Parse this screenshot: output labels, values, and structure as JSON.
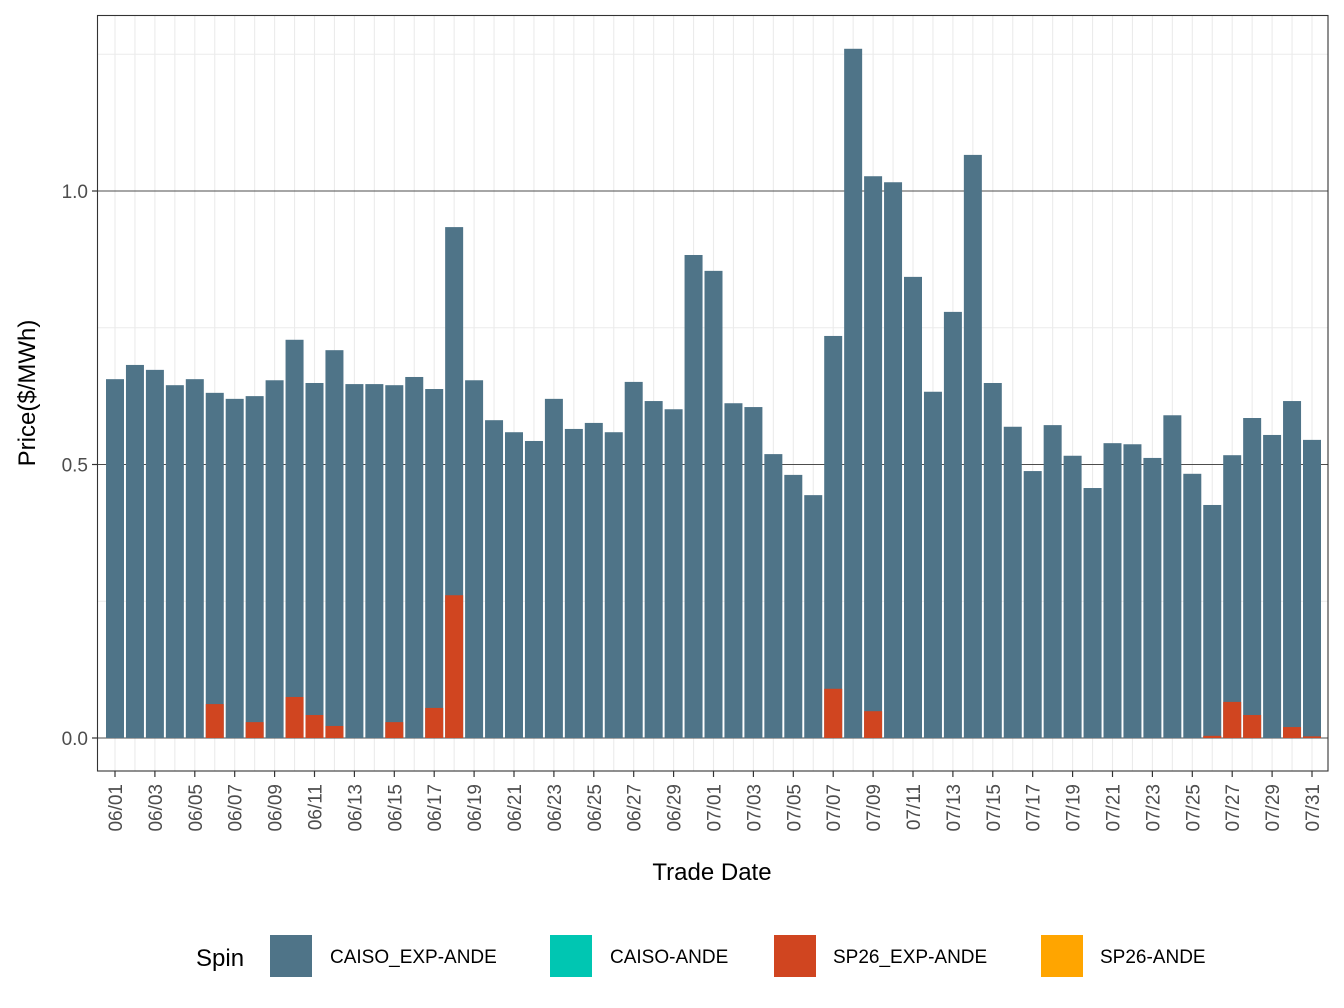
{
  "chart_data": {
    "type": "bar",
    "stacking": "overlay",
    "title": "",
    "xlabel": "Trade Date",
    "ylabel": "Price($/MWh)",
    "ylim": [
      -0.06,
      1.3
    ],
    "y_ticks": [
      0.0,
      0.5,
      1.0
    ],
    "y_tick_labels": [
      "0.0",
      "0.5",
      "1.0"
    ],
    "y_minor_ticks": [
      0.25,
      0.75,
      1.25
    ],
    "grid": true,
    "categories": [
      "06/01",
      "06/02",
      "06/03",
      "06/04",
      "06/05",
      "06/06",
      "06/07",
      "06/08",
      "06/09",
      "06/10",
      "06/11",
      "06/12",
      "06/13",
      "06/14",
      "06/15",
      "06/16",
      "06/17",
      "06/18",
      "06/19",
      "06/20",
      "06/21",
      "06/22",
      "06/23",
      "06/24",
      "06/25",
      "06/26",
      "06/27",
      "06/28",
      "06/29",
      "06/30",
      "07/01",
      "07/02",
      "07/03",
      "07/04",
      "07/05",
      "07/06",
      "07/07",
      "07/08",
      "07/09",
      "07/10",
      "07/11",
      "07/12",
      "07/13",
      "07/14",
      "07/15",
      "07/16",
      "07/17",
      "07/18",
      "07/19",
      "07/20",
      "07/21",
      "07/22",
      "07/23",
      "07/24",
      "07/25",
      "07/26",
      "07/27",
      "07/28",
      "07/29",
      "07/30",
      "07/31"
    ],
    "x_tick_labels": [
      "06/01",
      "06/03",
      "06/05",
      "06/07",
      "06/09",
      "06/11",
      "06/13",
      "06/15",
      "06/17",
      "06/19",
      "06/21",
      "06/23",
      "06/25",
      "06/27",
      "06/29",
      "07/01",
      "07/03",
      "07/05",
      "07/07",
      "07/09",
      "07/11",
      "07/13",
      "07/15",
      "07/17",
      "07/19",
      "07/21",
      "07/23",
      "07/25",
      "07/27",
      "07/29",
      "07/31"
    ],
    "legend": {
      "title": "Spin",
      "position": "bottom",
      "entries": [
        {
          "label": "CAISO_EXP-ANDE",
          "color": "#4f7488"
        },
        {
          "label": "CAISO-ANDE",
          "color": "#00c6b2"
        },
        {
          "label": "SP26_EXP-ANDE",
          "color": "#d04520"
        },
        {
          "label": "SP26-ANDE",
          "color": "#ffa500"
        }
      ]
    },
    "series": [
      {
        "name": "CAISO_EXP-ANDE",
        "color": "#4f7488",
        "values": [
          0.656,
          0.682,
          0.673,
          0.645,
          0.656,
          0.631,
          0.62,
          0.625,
          0.654,
          0.728,
          0.649,
          0.709,
          0.647,
          0.647,
          0.645,
          0.66,
          0.638,
          0.934,
          0.654,
          0.581,
          0.559,
          0.543,
          0.62,
          0.565,
          0.576,
          0.559,
          0.651,
          0.616,
          0.601,
          0.883,
          0.854,
          0.612,
          0.605,
          0.519,
          0.481,
          0.444,
          0.735,
          1.26,
          1.027,
          1.016,
          0.843,
          0.633,
          0.779,
          1.066,
          0.649,
          0.569,
          0.488,
          0.572,
          0.516,
          0.457,
          0.539,
          0.537,
          0.512,
          0.59,
          0.483,
          0.426,
          0.517,
          0.585,
          0.554,
          0.616,
          0.545
        ]
      },
      {
        "name": "CAISO-ANDE",
        "color": "#00c6b2",
        "values": [
          0,
          0,
          0,
          0,
          0,
          0,
          0,
          0,
          0,
          0,
          0,
          0,
          0,
          0,
          0,
          0,
          0,
          0,
          0,
          0,
          0,
          0,
          0,
          0,
          0,
          0,
          0,
          0,
          0,
          0,
          0,
          0,
          0,
          0,
          0,
          0,
          0,
          0,
          0,
          0,
          0,
          0,
          0,
          0,
          0,
          0,
          0,
          0,
          0,
          0,
          0,
          0,
          0,
          0,
          0,
          0,
          0,
          0,
          0,
          0,
          0
        ]
      },
      {
        "name": "SP26_EXP-ANDE",
        "color": "#d04520",
        "values": [
          0,
          0,
          0,
          0,
          0,
          0.062,
          0,
          0.029,
          0,
          0.075,
          0.042,
          0.022,
          0,
          0,
          0.029,
          0,
          0.055,
          0.261,
          0,
          0,
          0,
          0,
          0,
          0,
          0,
          0,
          0,
          0,
          0,
          0,
          0,
          0,
          0,
          0,
          0,
          0,
          0.09,
          0,
          0.049,
          0,
          0,
          0,
          0,
          0,
          0,
          0,
          0,
          0,
          0,
          0,
          0,
          0,
          0,
          0,
          0,
          0.004,
          0.066,
          0.042,
          0,
          0.02,
          0.003
        ]
      },
      {
        "name": "SP26-ANDE",
        "color": "#ffa500",
        "values": [
          0,
          0,
          0,
          0,
          0,
          0,
          0,
          0,
          0,
          0,
          0,
          0,
          0,
          0,
          0,
          0,
          0,
          0,
          0,
          0,
          0,
          0,
          0,
          0,
          0,
          0,
          0,
          0,
          0,
          0,
          0,
          0,
          0,
          0,
          0,
          0,
          0,
          0,
          0,
          0,
          0,
          0,
          0,
          0,
          0,
          0,
          0,
          0,
          0,
          0,
          0,
          0,
          0,
          0,
          0,
          0,
          0,
          0,
          0,
          0,
          0
        ]
      }
    ]
  }
}
